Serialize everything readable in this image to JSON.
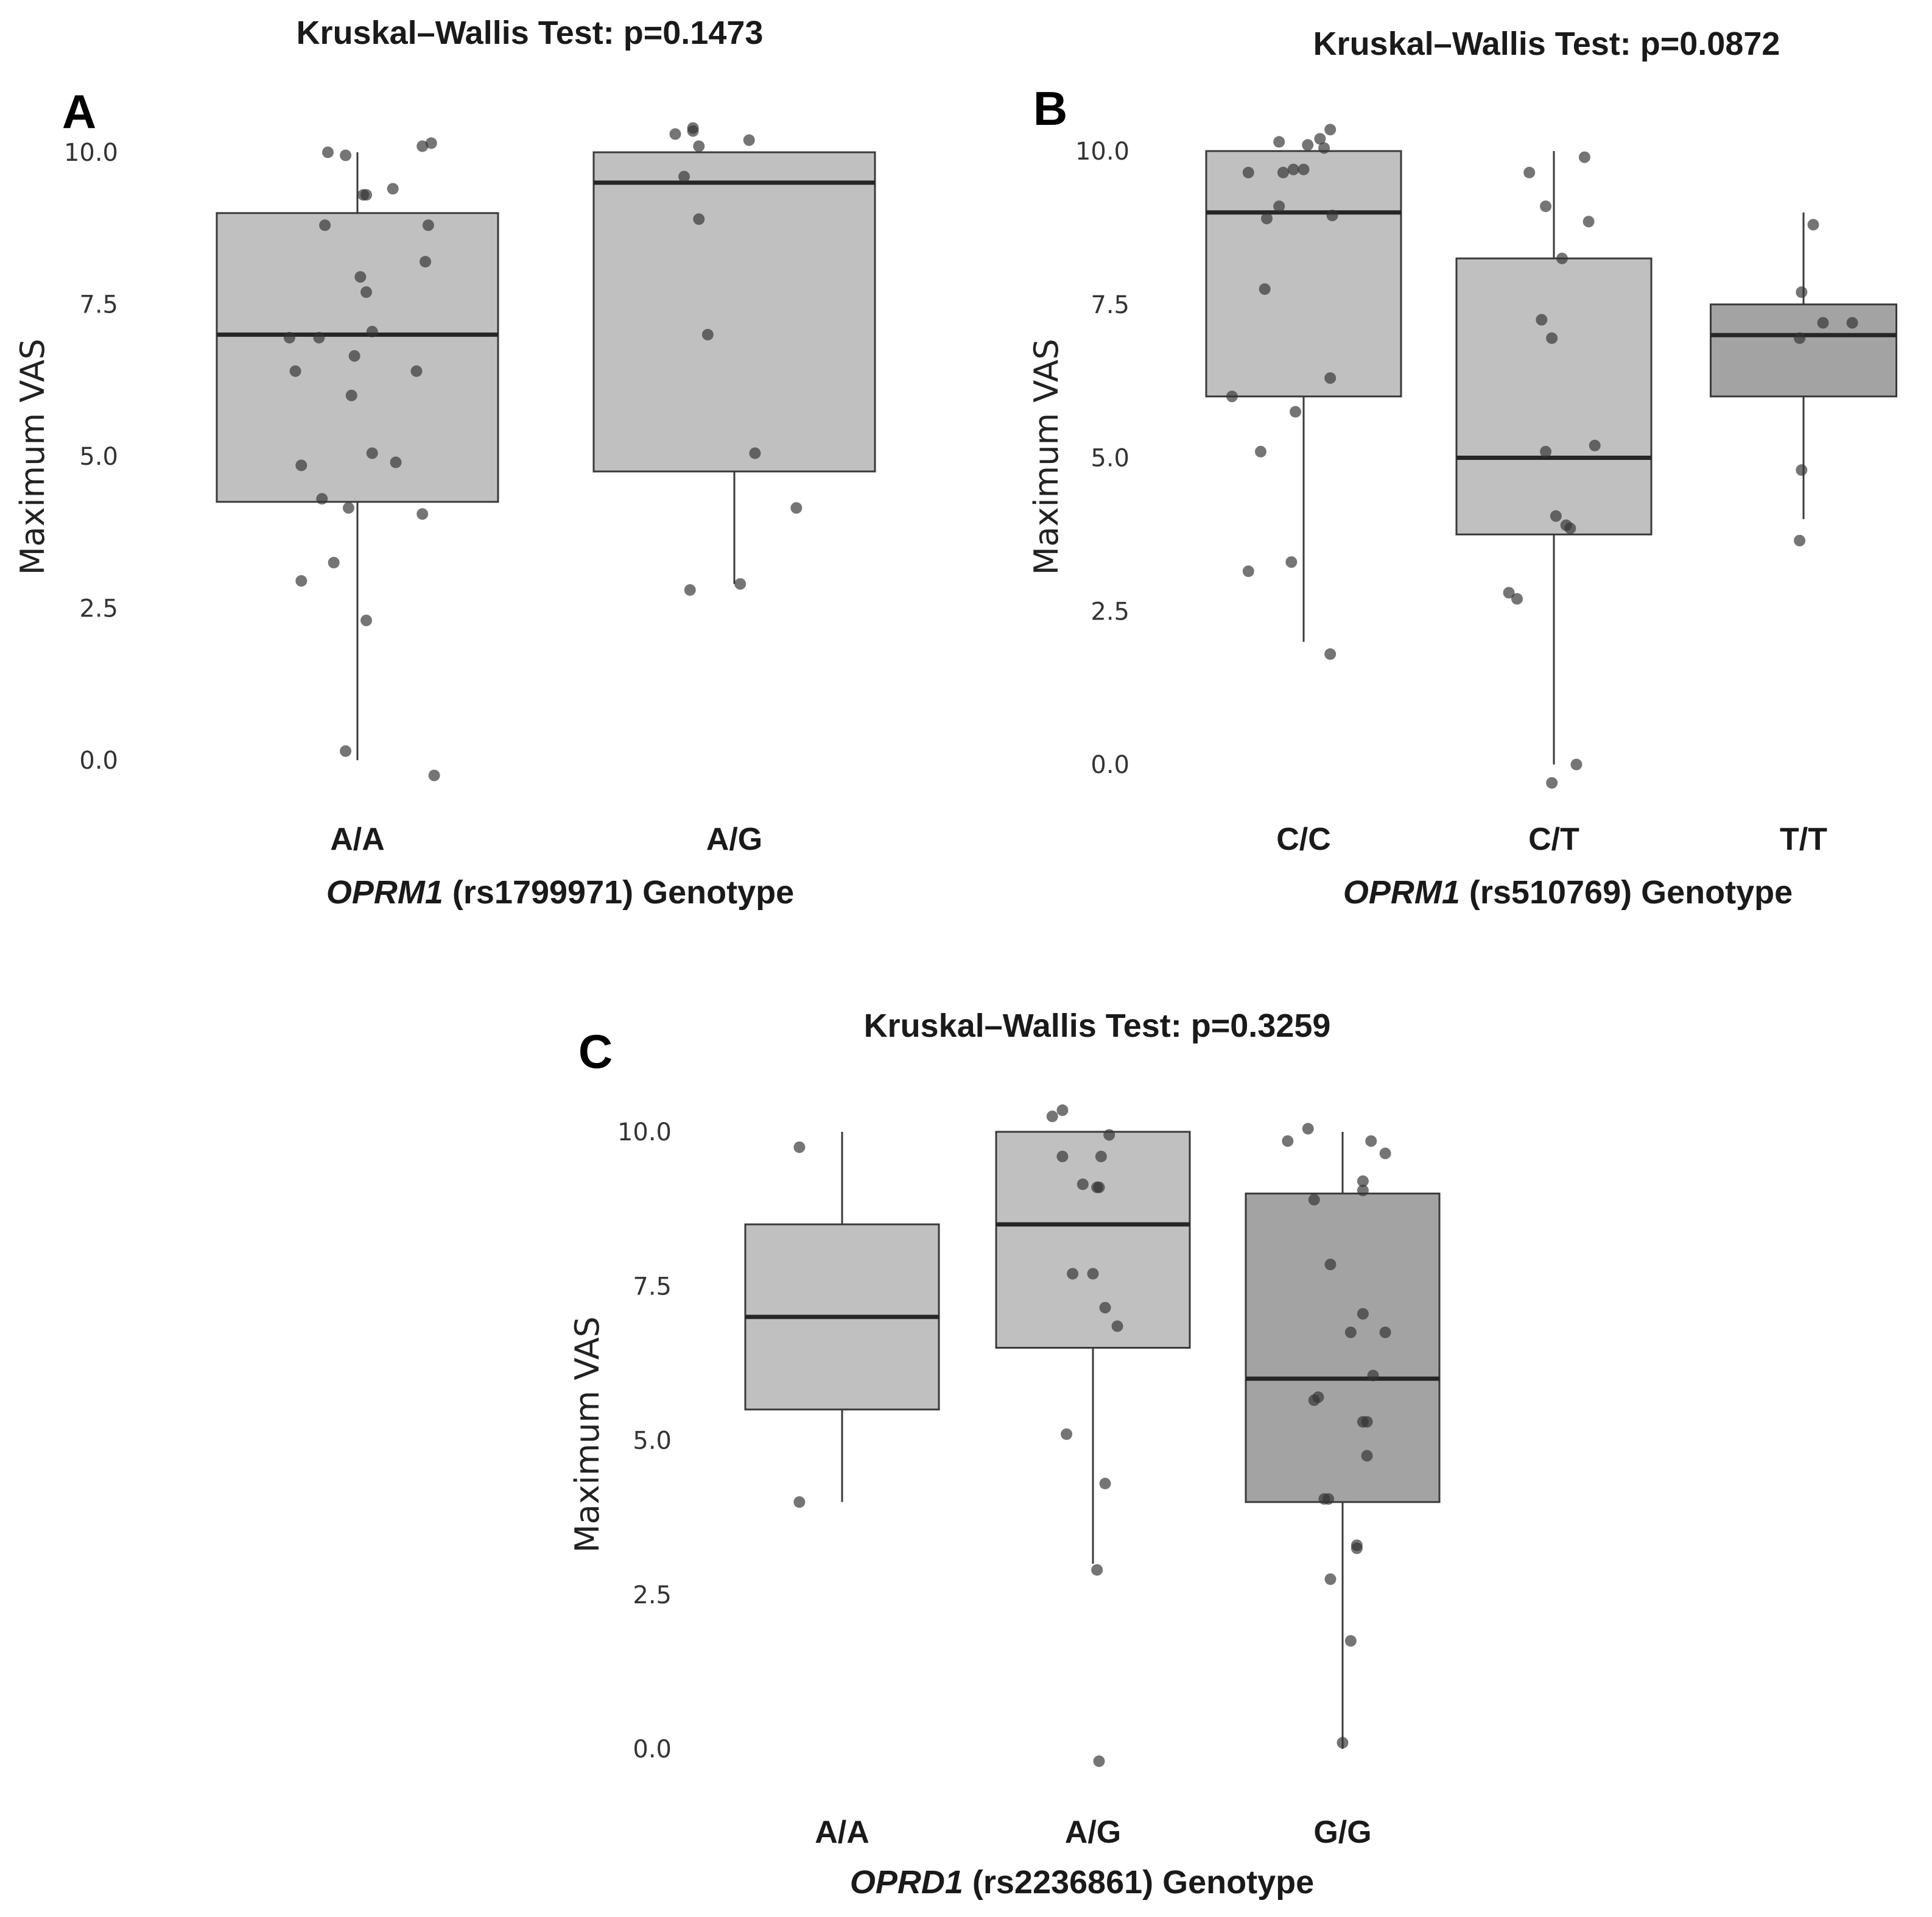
{
  "figure": {
    "colors": {
      "box_light": "#c0c0c0",
      "box_dark": "#a3a3a3",
      "outline": "#3a3a3a",
      "point": "#333333"
    }
  },
  "chart_data": [
    {
      "panel": "A",
      "type": "box",
      "title": "Kruskal–Wallis Test: p=0.1473",
      "ylabel": "Maximum VAS",
      "xlabel_gene": "OPRM1",
      "xlabel_rest": " (rs1799971) Genotype",
      "ylim": [
        -0.45,
        10.6
      ],
      "yticks": [
        "0.0",
        "2.5",
        "5.0",
        "7.5",
        "10.0"
      ],
      "categories": [
        "A/A",
        "A/G"
      ],
      "boxes": [
        {
          "min": 0,
          "q1": 4.25,
          "median": 7.0,
          "q3": 9.0,
          "max": 10.0,
          "shade": "light"
        },
        {
          "min": 2.9,
          "q1": 4.75,
          "median": 9.5,
          "q3": 10.0,
          "max": 10.0,
          "shade": "light"
        }
      ],
      "points": [
        [
          [
            -0.1,
            10.0
          ],
          [
            -0.04,
            9.95
          ],
          [
            0.02,
            9.3
          ],
          [
            0.03,
            9.3
          ],
          [
            0.12,
            9.4
          ],
          [
            0.22,
            10.1
          ],
          [
            0.25,
            10.15
          ],
          [
            -0.11,
            8.8
          ],
          [
            0.24,
            8.8
          ],
          [
            0.23,
            8.2
          ],
          [
            0.01,
            7.95
          ],
          [
            0.03,
            7.7
          ],
          [
            -0.23,
            6.95
          ],
          [
            -0.13,
            6.95
          ],
          [
            0.05,
            7.05
          ],
          [
            -0.01,
            6.65
          ],
          [
            -0.21,
            6.4
          ],
          [
            0.2,
            6.4
          ],
          [
            -0.02,
            6.0
          ],
          [
            0.05,
            5.05
          ],
          [
            0.13,
            4.9
          ],
          [
            -0.19,
            4.85
          ],
          [
            -0.12,
            4.3
          ],
          [
            -0.03,
            4.15
          ],
          [
            0.22,
            4.05
          ],
          [
            -0.08,
            3.25
          ],
          [
            -0.19,
            2.95
          ],
          [
            0.03,
            2.3
          ],
          [
            -0.04,
            0.15
          ],
          [
            0.26,
            -0.25
          ]
        ],
        [
          [
            -0.2,
            10.3
          ],
          [
            -0.14,
            10.4
          ],
          [
            -0.14,
            10.35
          ],
          [
            -0.12,
            10.1
          ],
          [
            -0.17,
            9.6
          ],
          [
            -0.12,
            8.9
          ],
          [
            0.05,
            10.2
          ],
          [
            -0.09,
            7.0
          ],
          [
            0.07,
            5.05
          ],
          [
            0.21,
            4.15
          ],
          [
            -0.15,
            2.8
          ],
          [
            0.02,
            2.9
          ]
        ]
      ]
    },
    {
      "panel": "B",
      "type": "box",
      "title": "Kruskal–Wallis Test: p=0.0872",
      "ylabel": "Maximum VAS",
      "xlabel_gene": "OPRM1",
      "xlabel_rest": " (rs510769) Genotype",
      "ylim": [
        -0.45,
        10.6
      ],
      "yticks": [
        "0.0",
        "2.5",
        "5.0",
        "7.5",
        "10.0"
      ],
      "categories": [
        "C/C",
        "C/T",
        "T/T"
      ],
      "boxes": [
        {
          "min": 2.0,
          "q1": 6.0,
          "median": 9.0,
          "q3": 10.0,
          "max": 10.0,
          "shade": "light"
        },
        {
          "min": 0,
          "q1": 3.75,
          "median": 5.0,
          "q3": 8.25,
          "max": 10.0,
          "shade": "light"
        },
        {
          "min": 4.0,
          "q1": 6.0,
          "median": 7.0,
          "q3": 7.5,
          "max": 9.0,
          "shade": "dark"
        }
      ],
      "points": [
        [
          [
            -0.12,
            10.15
          ],
          [
            0.02,
            10.1
          ],
          [
            0.13,
            10.35
          ],
          [
            0.08,
            10.2
          ],
          [
            0.1,
            10.05
          ],
          [
            -0.27,
            9.65
          ],
          [
            -0.1,
            9.65
          ],
          [
            -0.05,
            9.7
          ],
          [
            0.0,
            9.7
          ],
          [
            -0.18,
            8.9
          ],
          [
            -0.12,
            9.1
          ],
          [
            0.14,
            8.95
          ],
          [
            -0.19,
            7.75
          ],
          [
            0.13,
            6.3
          ],
          [
            -0.35,
            6.0
          ],
          [
            -0.04,
            5.75
          ],
          [
            -0.21,
            5.1
          ],
          [
            -0.27,
            3.15
          ],
          [
            -0.06,
            3.3
          ],
          [
            0.13,
            1.8
          ]
        ],
        [
          [
            -0.12,
            9.65
          ],
          [
            -0.04,
            9.1
          ],
          [
            0.15,
            9.9
          ],
          [
            0.17,
            8.85
          ],
          [
            0.04,
            8.25
          ],
          [
            -0.06,
            7.25
          ],
          [
            -0.01,
            6.95
          ],
          [
            -0.04,
            5.1
          ],
          [
            0.2,
            5.2
          ],
          [
            0.01,
            4.05
          ],
          [
            0.06,
            3.9
          ],
          [
            0.08,
            3.85
          ],
          [
            -0.22,
            2.8
          ],
          [
            -0.18,
            2.7
          ],
          [
            -0.01,
            -0.3
          ],
          [
            0.11,
            0.0
          ]
        ],
        [
          [
            0.05,
            8.8
          ],
          [
            -0.01,
            7.7
          ],
          [
            -0.02,
            6.95
          ],
          [
            0.1,
            7.2
          ],
          [
            0.25,
            7.2
          ],
          [
            -0.01,
            4.8
          ],
          [
            -0.02,
            3.65
          ]
        ]
      ]
    },
    {
      "panel": "C",
      "type": "box",
      "title": "Kruskal–Wallis Test: p=0.3259",
      "ylabel": "Maximum VAS",
      "xlabel_gene": "OPRD1",
      "xlabel_rest": " (rs2236861) Genotype",
      "ylim": [
        -0.45,
        10.6
      ],
      "yticks": [
        "0.0",
        "2.5",
        "5.0",
        "7.5",
        "10.0"
      ],
      "categories": [
        "A/A",
        "A/G",
        "G/G"
      ],
      "boxes": [
        {
          "min": 4.0,
          "q1": 5.5,
          "median": 7.0,
          "q3": 8.5,
          "max": 10.0,
          "shade": "light"
        },
        {
          "min": 3.0,
          "q1": 6.5,
          "median": 8.5,
          "q3": 10.0,
          "max": 10.0,
          "shade": "light"
        },
        {
          "min": 0,
          "q1": 4.0,
          "median": 6.0,
          "q3": 9.0,
          "max": 10.0,
          "shade": "dark"
        }
      ],
      "points": [
        [
          [
            -0.21,
            9.75
          ],
          [
            -0.21,
            4.0
          ]
        ],
        [
          [
            -0.2,
            10.25
          ],
          [
            -0.15,
            10.35
          ],
          [
            -0.15,
            9.6
          ],
          [
            -0.05,
            9.15
          ],
          [
            0.02,
            9.1
          ],
          [
            0.03,
            9.1
          ],
          [
            0.04,
            9.6
          ],
          [
            0.08,
            9.95
          ],
          [
            -0.1,
            7.7
          ],
          [
            0.0,
            7.7
          ],
          [
            0.06,
            7.15
          ],
          [
            0.12,
            6.85
          ],
          [
            -0.13,
            5.1
          ],
          [
            0.06,
            4.3
          ],
          [
            0.02,
            2.9
          ],
          [
            0.03,
            -0.2
          ]
        ],
        [
          [
            -0.27,
            9.85
          ],
          [
            -0.17,
            10.05
          ],
          [
            0.14,
            9.85
          ],
          [
            0.21,
            9.65
          ],
          [
            0.1,
            9.2
          ],
          [
            0.1,
            9.05
          ],
          [
            -0.14,
            8.9
          ],
          [
            -0.06,
            7.85
          ],
          [
            0.1,
            7.05
          ],
          [
            0.04,
            6.75
          ],
          [
            0.21,
            6.75
          ],
          [
            0.15,
            6.05
          ],
          [
            -0.14,
            5.65
          ],
          [
            -0.12,
            5.7
          ],
          [
            0.1,
            5.3
          ],
          [
            0.12,
            5.3
          ],
          [
            0.12,
            4.75
          ],
          [
            -0.07,
            4.05
          ],
          [
            -0.09,
            4.05
          ],
          [
            0.07,
            3.25
          ],
          [
            0.07,
            3.3
          ],
          [
            -0.06,
            2.75
          ],
          [
            0.04,
            1.75
          ],
          [
            0.0,
            0.1
          ]
        ]
      ]
    }
  ]
}
